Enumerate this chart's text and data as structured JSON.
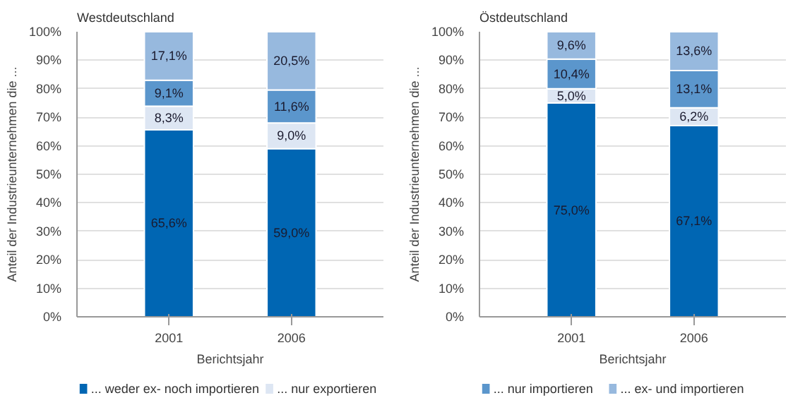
{
  "chart_data": [
    {
      "type": "bar",
      "stacked": true,
      "title": "Westdeutschland",
      "xlabel": "Berichtsjahr",
      "ylabel": "Anteil der Industrieunternehmen die ...",
      "categories": [
        "2001",
        "2006"
      ],
      "ylim": [
        0,
        100
      ],
      "yticks": [
        {
          "value": 0,
          "label": "0%"
        },
        {
          "value": 10,
          "label": "10%"
        },
        {
          "value": 20,
          "label": "20%"
        },
        {
          "value": 30,
          "label": "30%"
        },
        {
          "value": 40,
          "label": "40%"
        },
        {
          "value": 50,
          "label": "50%"
        },
        {
          "value": 60,
          "label": "60%"
        },
        {
          "value": 70,
          "label": "70%"
        },
        {
          "value": 80,
          "label": "80%"
        },
        {
          "value": 90,
          "label": "90%"
        },
        {
          "value": 100,
          "label": "100%"
        }
      ],
      "grid": "y",
      "legend": "bottom",
      "series": [
        {
          "name": "... weder ex- noch importieren",
          "color": "#0066b3",
          "values": [
            65.6,
            59.0
          ],
          "value_labels": [
            "65,6%",
            "59,0%"
          ]
        },
        {
          "name": "... nur exportieren",
          "color": "#dde6f3",
          "values": [
            8.3,
            9.0
          ],
          "value_labels": [
            "8,3%",
            "9,0%"
          ]
        },
        {
          "color": "#5b96cc",
          "values": [
            9.1,
            11.6
          ],
          "value_labels": [
            "9,1%",
            "11,6%"
          ]
        },
        {
          "color": "#97b9de",
          "values": [
            17.1,
            20.5
          ],
          "value_labels": [
            "17,1%",
            "20,5%"
          ]
        }
      ]
    },
    {
      "type": "bar",
      "stacked": true,
      "title": "Östdeutschland",
      "xlabel": "Berichtsjahr",
      "ylabel": "Anteil der Industrieunternehmen die ...",
      "categories": [
        "2001",
        "2006"
      ],
      "ylim": [
        0,
        100
      ],
      "yticks": [
        {
          "value": 0,
          "label": "0%"
        },
        {
          "value": 10,
          "label": "10%"
        },
        {
          "value": 20,
          "label": "20%"
        },
        {
          "value": 30,
          "label": "30%"
        },
        {
          "value": 40,
          "label": "40%"
        },
        {
          "value": 50,
          "label": "50%"
        },
        {
          "value": 60,
          "label": "60%"
        },
        {
          "value": 70,
          "label": "70%"
        },
        {
          "value": 80,
          "label": "80%"
        },
        {
          "value": 90,
          "label": "90%"
        },
        {
          "value": 100,
          "label": "100%"
        }
      ],
      "grid": "y",
      "legend": "bottom",
      "series": [
        {
          "color": "#0066b3",
          "values": [
            75.0,
            67.1
          ],
          "value_labels": [
            "75,0%",
            "67,1%"
          ]
        },
        {
          "color": "#dde6f3",
          "values": [
            5.0,
            6.2
          ],
          "value_labels": [
            "5,0%",
            "6,2%"
          ]
        },
        {
          "name": "... nur importieren",
          "color": "#5b96cc",
          "values": [
            10.4,
            13.1
          ],
          "value_labels": [
            "10,4%",
            "13,1%"
          ]
        },
        {
          "name": "... ex- und importieren",
          "color": "#97b9de",
          "values": [
            9.6,
            13.6
          ],
          "value_labels": [
            "9,6%",
            "13,6%"
          ]
        }
      ]
    }
  ]
}
